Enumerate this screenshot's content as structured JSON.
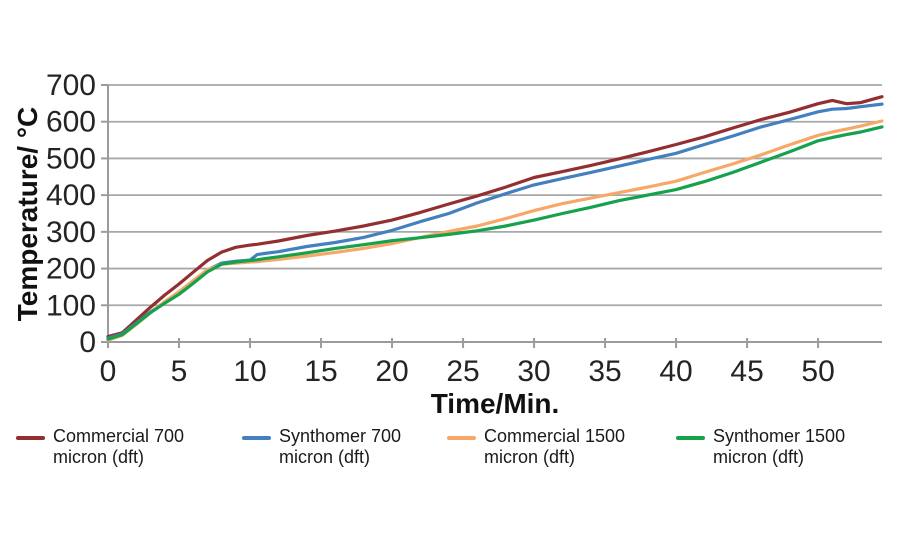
{
  "chart_data": {
    "type": "line",
    "title": "",
    "xlabel": "Time/Min.",
    "ylabel": "Temperature/ °C",
    "xlim": [
      0,
      54.5
    ],
    "ylim": [
      0,
      700
    ],
    "x_ticks": [
      0,
      5,
      10,
      15,
      20,
      25,
      30,
      35,
      40,
      45,
      50
    ],
    "y_ticks": [
      0,
      100,
      200,
      300,
      400,
      500,
      600,
      700
    ],
    "grid": "horizontal",
    "legend_position": "bottom",
    "x": [
      0,
      1,
      2,
      3,
      4,
      5,
      6,
      7,
      8,
      9,
      10,
      10.5,
      11,
      12,
      14,
      16,
      18,
      20,
      22,
      24,
      26,
      28,
      30,
      32,
      34,
      36,
      38,
      40,
      42,
      44,
      46,
      48,
      50,
      51,
      52,
      53,
      54.5
    ],
    "series": [
      {
        "name": "Commercial 700 micron (dft)",
        "color": "#942F31",
        "values": [
          15,
          25,
          60,
          95,
          128,
          158,
          190,
          222,
          245,
          258,
          264,
          266,
          269,
          275,
          290,
          302,
          316,
          332,
          353,
          376,
          398,
          422,
          448,
          464,
          481,
          499,
          518,
          538,
          559,
          583,
          606,
          626,
          649,
          658,
          649,
          652,
          668
        ]
      },
      {
        "name": "Synthomer 700 micron (dft)",
        "color": "#4380C0",
        "values": [
          10,
          22,
          52,
          82,
          108,
          132,
          163,
          196,
          215,
          220,
          223,
          238,
          241,
          246,
          260,
          271,
          285,
          304,
          328,
          350,
          379,
          404,
          428,
          445,
          462,
          479,
          497,
          514,
          538,
          561,
          586,
          606,
          627,
          634,
          636,
          641,
          648
        ]
      },
      {
        "name": "Commercial 1500 micron (dft)",
        "color": "#F7A868",
        "values": [
          5,
          18,
          48,
          80,
          110,
          137,
          167,
          197,
          212,
          215,
          218,
          219,
          221,
          225,
          234,
          244,
          255,
          268,
          285,
          301,
          316,
          336,
          358,
          377,
          392,
          407,
          422,
          438,
          462,
          485,
          510,
          537,
          563,
          572,
          580,
          588,
          602
        ]
      },
      {
        "name": "Synthomer 1500 micron (dft)",
        "color": "#16A24C",
        "values": [
          8,
          20,
          50,
          80,
          106,
          130,
          160,
          191,
          212,
          218,
          222,
          224,
          227,
          232,
          243,
          255,
          265,
          276,
          284,
          293,
          303,
          316,
          332,
          350,
          367,
          385,
          400,
          415,
          437,
          462,
          490,
          518,
          548,
          557,
          565,
          572,
          586
        ]
      }
    ]
  },
  "styles": {
    "grid_color": "#A8A8A8",
    "axis_color": "#9B9B9B",
    "tick_label_color": "#242424"
  }
}
